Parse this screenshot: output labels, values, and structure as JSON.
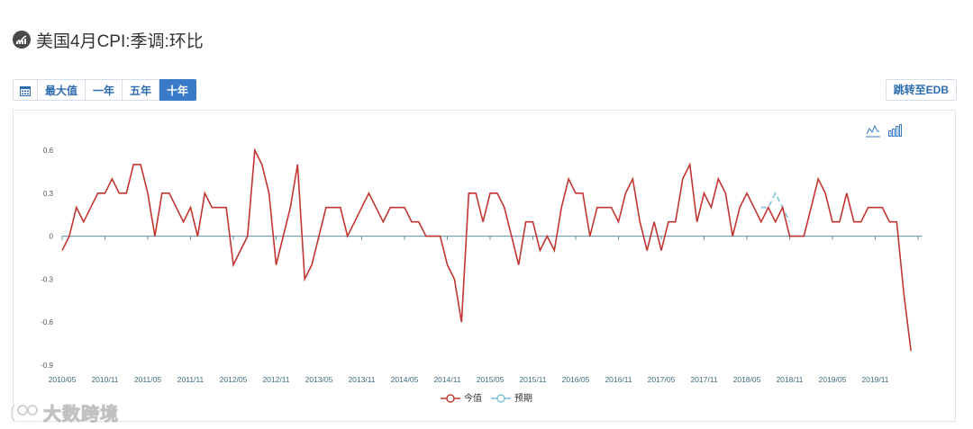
{
  "header": {
    "title": "美国4月CPI:季调:环比",
    "icon": "chart-trend-icon"
  },
  "toolbar": {
    "calendar_icon": "calendar-icon",
    "buttons": [
      {
        "label": "最大值",
        "active": false
      },
      {
        "label": "一年",
        "active": false
      },
      {
        "label": "五年",
        "active": false
      },
      {
        "label": "十年",
        "active": true
      }
    ],
    "edb_label": "跳转至EDB",
    "line_toggle_icon": "line-chart-icon",
    "bar_toggle_icon": "bar-chart-icon"
  },
  "watermark": {
    "text": "大数跨境",
    "icon": "logo-icon"
  },
  "chart_data": {
    "type": "line",
    "title": "",
    "xlabel": "",
    "ylabel": "",
    "ylim": [
      -0.9,
      0.6
    ],
    "yticks": [
      "0.6",
      "0.3",
      "0",
      "-0.3",
      "-0.6",
      "-0.9"
    ],
    "xticks": [
      "2010/05",
      "2010/11",
      "2011/05",
      "2011/11",
      "2012/05",
      "2012/11",
      "2013/05",
      "2013/11",
      "2014/05",
      "2014/11",
      "2015/05",
      "2015/11",
      "2016/05",
      "2016/11",
      "2017/05",
      "2017/11",
      "2018/05",
      "2018/11",
      "2019/05",
      "2019/11"
    ],
    "start": "2010/05",
    "legend_position": "bottom",
    "colors": {
      "actual": "#c23531",
      "forecast": "#7fc0d8",
      "axis": "#5b8fa3"
    },
    "series": [
      {
        "name": "今值",
        "values": [
          -0.1,
          0,
          0.2,
          0.1,
          0.2,
          0.3,
          0.3,
          0.4,
          0.3,
          0.3,
          0.5,
          0.5,
          0.3,
          0,
          0.3,
          0.3,
          0.2,
          0.1,
          0.2,
          0,
          0.3,
          0.2,
          0.2,
          0.2,
          -0.2,
          -0.1,
          0,
          0.6,
          0.5,
          0.3,
          -0.2,
          0,
          0.2,
          0.5,
          -0.3,
          -0.2,
          0,
          0.2,
          0.2,
          0.2,
          0,
          0.1,
          0.2,
          0.3,
          0.2,
          0.1,
          0.2,
          0.2,
          0.2,
          0.1,
          0.1,
          0,
          0,
          0,
          -0.2,
          -0.3,
          -0.6,
          0.3,
          0.3,
          0.1,
          0.3,
          0.3,
          0.2,
          0,
          -0.2,
          0.1,
          0.1,
          -0.1,
          0,
          -0.1,
          0.2,
          0.4,
          0.3,
          0.3,
          0,
          0.2,
          0.2,
          0.2,
          0.1,
          0.3,
          0.4,
          0.1,
          -0.1,
          0.1,
          -0.1,
          0.1,
          0.1,
          0.4,
          0.5,
          0.1,
          0.3,
          0.2,
          0.4,
          0.3,
          0,
          0.2,
          0.3,
          0.2,
          0.1,
          0.2,
          0.1,
          0.2,
          0,
          0,
          0,
          0.2,
          0.4,
          0.3,
          0.1,
          0.1,
          0.3,
          0.1,
          0.1,
          0.2,
          0.2,
          0.2,
          0.1,
          0.1,
          -0.4,
          -0.8
        ]
      },
      {
        "name": "预期",
        "start_index": 98,
        "values": [
          0.2,
          0.2,
          0.3,
          0.2,
          0.1
        ]
      }
    ]
  }
}
